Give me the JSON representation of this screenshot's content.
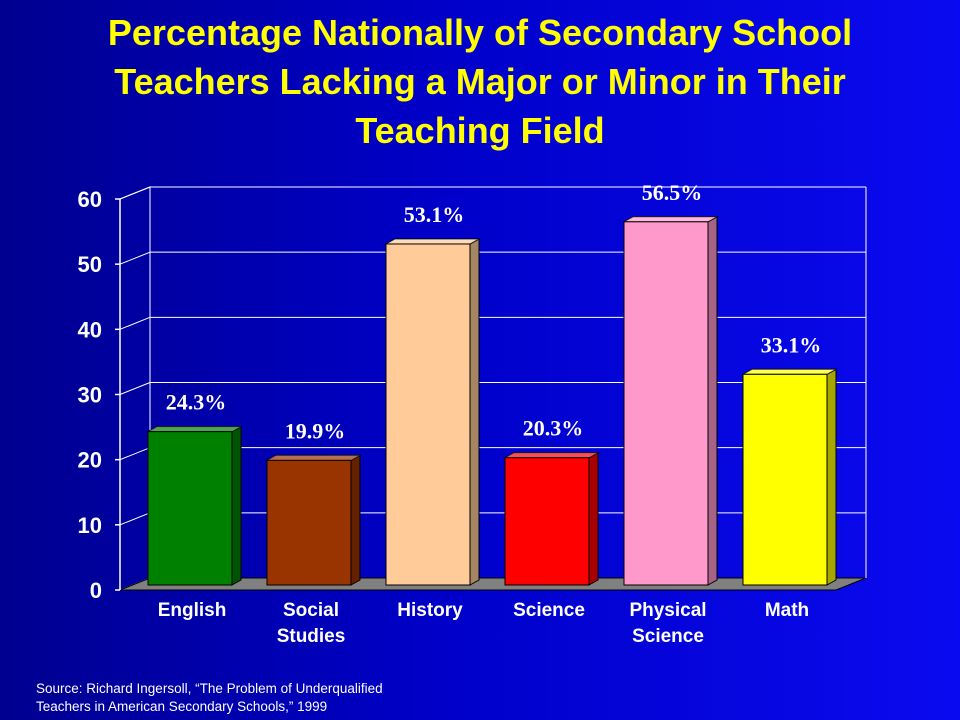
{
  "chart_data": {
    "type": "bar",
    "title": "Percentage Nationally of Secondary School Teachers Lacking a Major or Minor in Their Teaching Field",
    "categories": [
      [
        "English"
      ],
      [
        "Social",
        "Studies"
      ],
      [
        "History"
      ],
      [
        "Science"
      ],
      [
        "Physical",
        "Science"
      ],
      [
        "Math"
      ]
    ],
    "values": [
      24.3,
      19.9,
      53.1,
      20.3,
      56.5,
      33.1
    ],
    "data_labels": [
      "24.3%",
      "19.9%",
      "53.1%",
      "20.3%",
      "56.5%",
      "33.1%"
    ],
    "colors": [
      "#008000",
      "#993300",
      "#ffcc99",
      "#ff0000",
      "#ff99cc",
      "#ffff00"
    ],
    "yticks": [
      "0",
      "10",
      "20",
      "30",
      "40",
      "50",
      "60"
    ],
    "ylim": [
      0,
      60
    ],
    "grid": true,
    "legend": "none",
    "xlabel": "",
    "ylabel": ""
  },
  "source": {
    "line1": "Source: Richard Ingersoll, “The Problem of Underqualified",
    "line2": "Teachers in American Secondary Schools,” 1999"
  }
}
